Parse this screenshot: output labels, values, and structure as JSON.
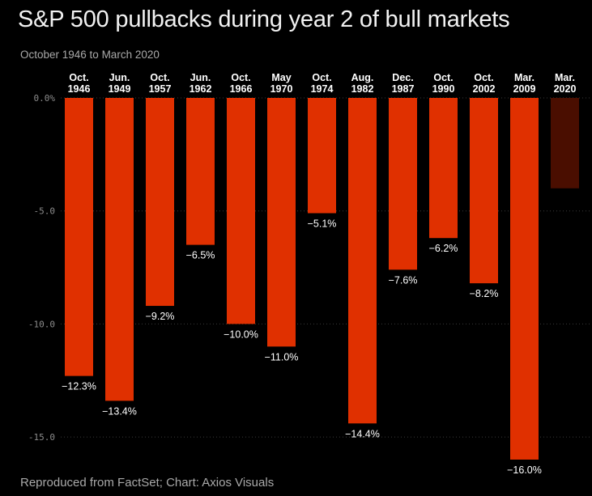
{
  "header": {
    "title": "S&P 500 pullbacks during year 2 of bull markets",
    "subtitle": "October 1946 to March 2020"
  },
  "footer": {
    "source": "Reproduced from FactSet; Chart: Axios Visuals"
  },
  "colors": {
    "bar": "#e03000",
    "bar_highlight": "#4a0e00",
    "grid": "#3a3a3a"
  },
  "chart_data": {
    "type": "bar",
    "categories": [
      [
        "Oct.",
        "1946"
      ],
      [
        "Jun.",
        "1949"
      ],
      [
        "Oct.",
        "1957"
      ],
      [
        "Jun.",
        "1962"
      ],
      [
        "Oct.",
        "1966"
      ],
      [
        "May",
        "1970"
      ],
      [
        "Oct.",
        "1974"
      ],
      [
        "Aug.",
        "1982"
      ],
      [
        "Dec.",
        "1987"
      ],
      [
        "Oct.",
        "1990"
      ],
      [
        "Oct.",
        "2002"
      ],
      [
        "Mar.",
        "2009"
      ],
      [
        "Mar.",
        "2020"
      ]
    ],
    "values": [
      -12.3,
      -13.4,
      -9.2,
      -6.5,
      -10.0,
      -11.0,
      -5.1,
      -14.4,
      -7.6,
      -6.2,
      -8.2,
      -16.0,
      -4.0
    ],
    "data_labels": [
      "−12.3%",
      "−13.4%",
      "−9.2%",
      "−6.5%",
      "−10.0%",
      "−11.0%",
      "−5.1%",
      "−14.4%",
      "−7.6%",
      "−6.2%",
      "−8.2%",
      "−16.0%",
      ""
    ],
    "highlight_index": 12,
    "y_ticks": [
      0,
      -5,
      -10,
      -15
    ],
    "y_tick_labels": [
      "0.0%",
      "-5.0",
      "-10.0",
      "-15.0"
    ],
    "ylim": [
      -16.0,
      0
    ],
    "grid": true
  }
}
